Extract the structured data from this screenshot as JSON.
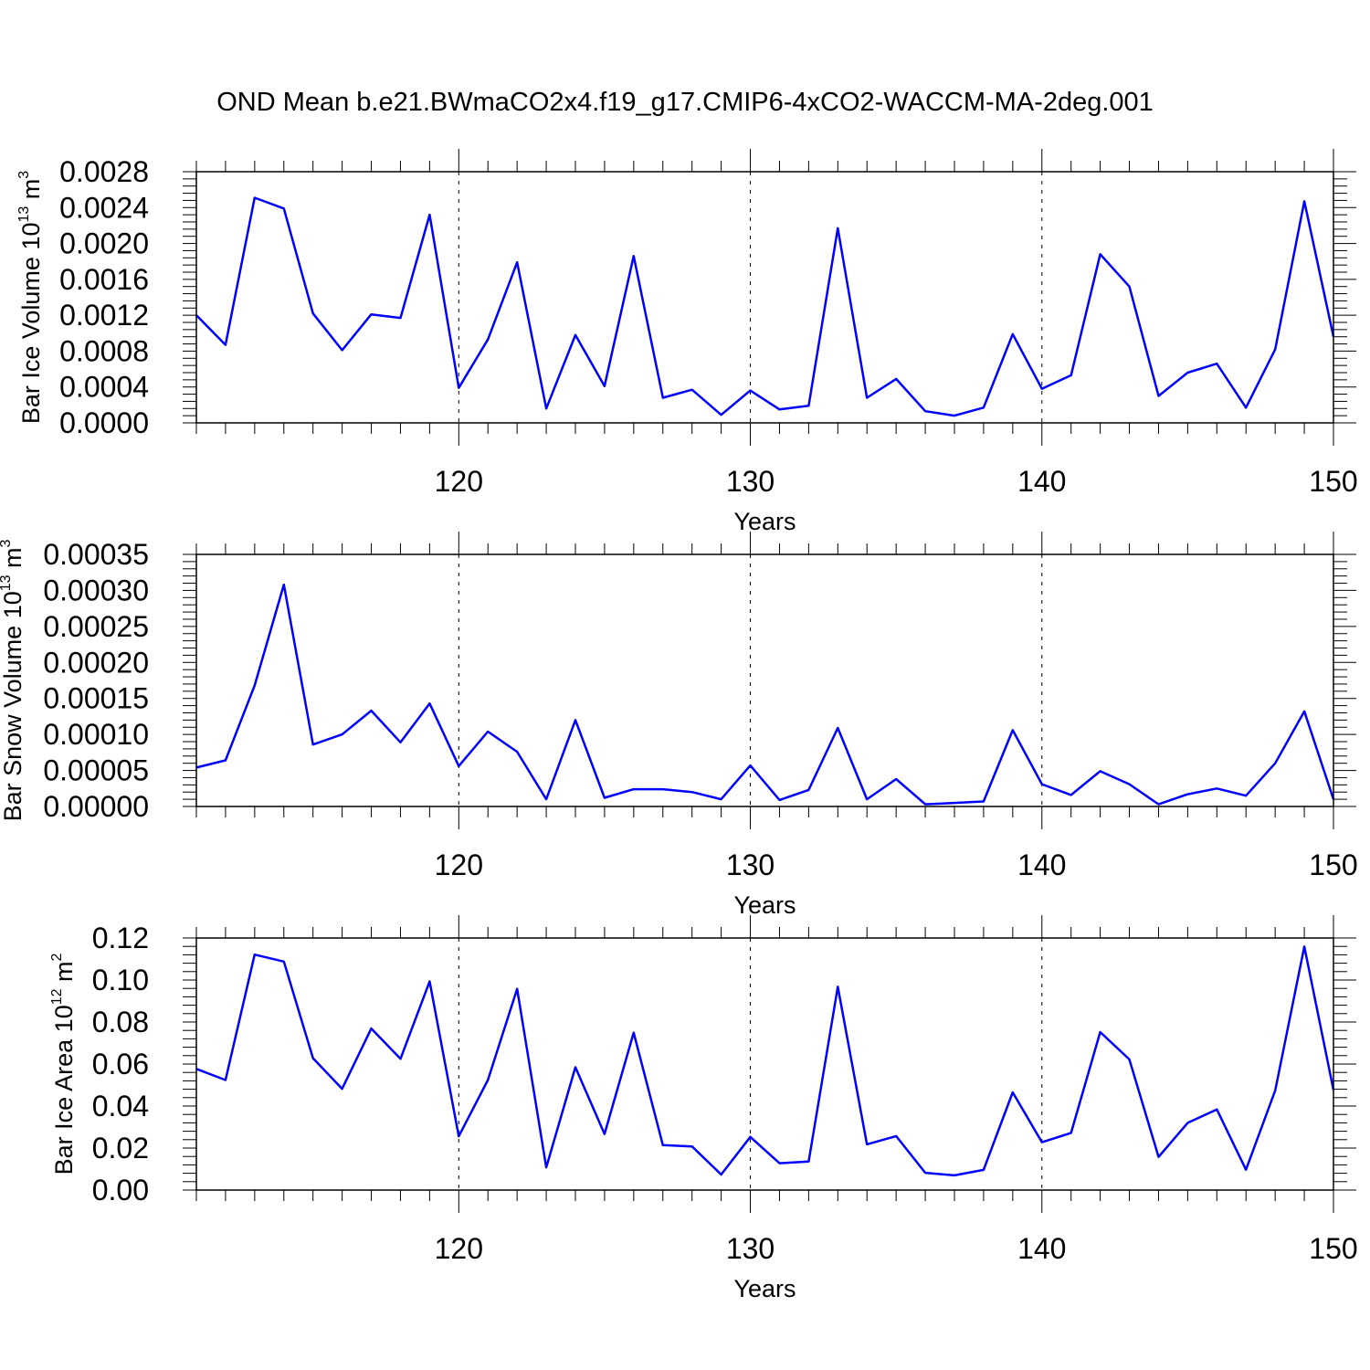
{
  "title": "OND Mean b.e21.BWmaCO2x4.f19_g17.CMIP6-4xCO2-WACCM-MA-2deg.001",
  "line_color": "#0000ff",
  "chart_data": [
    {
      "type": "line",
      "xlabel": "Years",
      "ylabel": "Bar Ice Volume 10",
      "ylabel_exp": "13",
      "ylabel_unit": "m",
      "ylabel_unit_exp": "3",
      "xlim": [
        111,
        150
      ],
      "ylim": [
        0,
        0.0028
      ],
      "xticks": [
        120,
        130,
        140,
        150
      ],
      "yticks": [
        "0.0000",
        "0.0004",
        "0.0008",
        "0.0012",
        "0.0016",
        "0.0020",
        "0.0024",
        "0.0028"
      ],
      "x": [
        111,
        112,
        113,
        114,
        115,
        116,
        117,
        118,
        119,
        120,
        121,
        122,
        123,
        124,
        125,
        126,
        127,
        128,
        129,
        130,
        131,
        132,
        133,
        134,
        135,
        136,
        137,
        138,
        139,
        140,
        141,
        142,
        143,
        144,
        145,
        146,
        147,
        148,
        149,
        150
      ],
      "series": [
        {
          "values": [
            0.0012,
            0.00087,
            0.00251,
            0.00239,
            0.00122,
            0.00081,
            0.00121,
            0.00117,
            0.00232,
            0.00039,
            0.00093,
            0.00179,
            0.00016,
            0.00098,
            0.00041,
            0.00186,
            0.00028,
            0.00037,
            9e-05,
            0.00036,
            0.00015,
            0.00019,
            0.00217,
            0.00028,
            0.00049,
            0.00013,
            8e-05,
            0.00017,
            0.00099,
            0.00038,
            0.00053,
            0.00188,
            0.00152,
            0.0003,
            0.00056,
            0.00066,
            0.00017,
            0.00082,
            0.00247,
            0.00096
          ]
        }
      ]
    },
    {
      "type": "line",
      "xlabel": "Years",
      "ylabel": "Bar Snow Volume 10",
      "ylabel_exp": "13",
      "ylabel_unit": "m",
      "ylabel_unit_exp": "3",
      "xlim": [
        111,
        150
      ],
      "ylim": [
        0,
        0.00035
      ],
      "xticks": [
        120,
        130,
        140,
        150
      ],
      "yticks": [
        "0.00000",
        "0.00005",
        "0.00010",
        "0.00015",
        "0.00020",
        "0.00025",
        "0.00030",
        "0.00035"
      ],
      "x": [
        111,
        112,
        113,
        114,
        115,
        116,
        117,
        118,
        119,
        120,
        121,
        122,
        123,
        124,
        125,
        126,
        127,
        128,
        129,
        130,
        131,
        132,
        133,
        134,
        135,
        136,
        137,
        138,
        139,
        140,
        141,
        142,
        143,
        144,
        145,
        146,
        147,
        148,
        149,
        150
      ],
      "series": [
        {
          "values": [
            5.4e-05,
            6.4e-05,
            0.000168,
            0.000308,
            8.6e-05,
            0.0001,
            0.000133,
            8.9e-05,
            0.000143,
            5.6e-05,
            0.000104,
            7.6e-05,
            1e-05,
            0.00012,
            1.2e-05,
            2.4e-05,
            2.4e-05,
            2e-05,
            1e-05,
            5.7e-05,
            9e-06,
            2.3e-05,
            0.000109,
            1e-05,
            3.8e-05,
            3e-06,
            5e-06,
            7e-06,
            0.000106,
            3.1e-05,
            1.6e-05,
            4.9e-05,
            3.1e-05,
            3e-06,
            1.7e-05,
            2.5e-05,
            1.5e-05,
            6e-05,
            0.000132,
            1e-05
          ]
        }
      ]
    },
    {
      "type": "line",
      "xlabel": "Years",
      "ylabel": "Bar Ice Area 10",
      "ylabel_exp": "12",
      "ylabel_unit": "m",
      "ylabel_unit_exp": "2",
      "xlim": [
        111,
        150
      ],
      "ylim": [
        0,
        0.12
      ],
      "xticks": [
        120,
        130,
        140,
        150
      ],
      "yticks": [
        "0.00",
        "0.02",
        "0.04",
        "0.06",
        "0.08",
        "0.10",
        "0.12"
      ],
      "x": [
        111,
        112,
        113,
        114,
        115,
        116,
        117,
        118,
        119,
        120,
        121,
        122,
        123,
        124,
        125,
        126,
        127,
        128,
        129,
        130,
        131,
        132,
        133,
        134,
        135,
        136,
        137,
        138,
        139,
        140,
        141,
        142,
        143,
        144,
        145,
        146,
        147,
        148,
        149,
        150
      ],
      "series": [
        {
          "values": [
            0.0577,
            0.0524,
            0.1121,
            0.1088,
            0.0628,
            0.0482,
            0.0769,
            0.0625,
            0.0993,
            0.0256,
            0.0524,
            0.0958,
            0.0108,
            0.0585,
            0.0267,
            0.0749,
            0.0214,
            0.0208,
            0.0074,
            0.0253,
            0.0128,
            0.0136,
            0.0968,
            0.0218,
            0.0257,
            0.0082,
            0.007,
            0.0096,
            0.0465,
            0.0228,
            0.0272,
            0.0752,
            0.0622,
            0.0158,
            0.032,
            0.0384,
            0.0097,
            0.0474,
            0.1159,
            0.0476
          ]
        }
      ]
    }
  ]
}
